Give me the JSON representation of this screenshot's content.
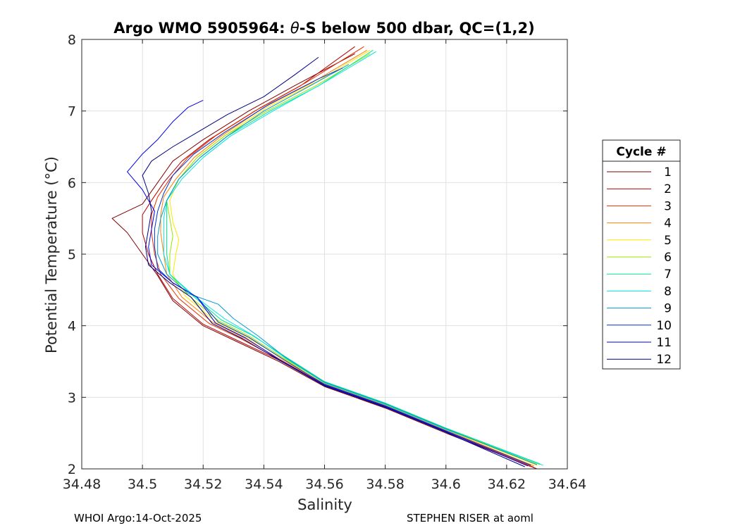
{
  "chart_data": {
    "type": "line",
    "title_prefix": "Argo WMO 5905964: ",
    "title_theta": "θ",
    "title_suffix": "-S below 500 dbar,  QC=(1,2)",
    "xlabel": "Salinity",
    "ylabel": "Potential Temperature (°C)",
    "xlim": [
      34.48,
      34.64
    ],
    "ylim": [
      2,
      8
    ],
    "xticks": [
      34.48,
      34.5,
      34.52,
      34.54,
      34.56,
      34.58,
      34.6,
      34.62,
      34.64
    ],
    "xtick_labels": [
      "34.48",
      "34.5",
      "34.52",
      "34.54",
      "34.56",
      "34.58",
      "34.6",
      "34.62",
      "34.64"
    ],
    "yticks": [
      2,
      3,
      4,
      5,
      6,
      7,
      8
    ],
    "ytick_labels": [
      "2",
      "3",
      "4",
      "5",
      "6",
      "7",
      "8"
    ],
    "grid": true,
    "legend": {
      "title": "Cycle #",
      "placement": "right"
    },
    "series": [
      {
        "name": "1",
        "color": "#800000",
        "points": [
          [
            34.63,
            2.0
          ],
          [
            34.6,
            2.5
          ],
          [
            34.58,
            2.85
          ],
          [
            34.56,
            3.15
          ],
          [
            34.545,
            3.5
          ],
          [
            34.53,
            3.8
          ],
          [
            34.52,
            4.0
          ],
          [
            34.51,
            4.35
          ],
          [
            34.505,
            4.7
          ],
          [
            34.5,
            5.0
          ],
          [
            34.495,
            5.3
          ],
          [
            34.49,
            5.5
          ],
          [
            34.5,
            5.7
          ],
          [
            34.505,
            6.0
          ],
          [
            34.51,
            6.3
          ],
          [
            34.52,
            6.6
          ],
          [
            34.535,
            7.0
          ],
          [
            34.55,
            7.35
          ],
          [
            34.57,
            7.8
          ]
        ]
      },
      {
        "name": "2",
        "color": "#b30000",
        "points": [
          [
            34.629,
            2.02
          ],
          [
            34.6,
            2.52
          ],
          [
            34.58,
            2.87
          ],
          [
            34.56,
            3.17
          ],
          [
            34.545,
            3.52
          ],
          [
            34.53,
            3.82
          ],
          [
            34.52,
            4.02
          ],
          [
            34.51,
            4.38
          ],
          [
            34.505,
            4.72
          ],
          [
            34.502,
            5.0
          ],
          [
            34.5,
            5.3
          ],
          [
            34.5,
            5.55
          ],
          [
            34.503,
            5.75
          ],
          [
            34.507,
            6.0
          ],
          [
            34.513,
            6.3
          ],
          [
            34.522,
            6.6
          ],
          [
            34.537,
            7.0
          ],
          [
            34.552,
            7.35
          ],
          [
            34.57,
            7.9
          ]
        ]
      },
      {
        "name": "3",
        "color": "#e62e00",
        "points": [
          [
            34.628,
            2.03
          ],
          [
            34.6,
            2.53
          ],
          [
            34.58,
            2.88
          ],
          [
            34.56,
            3.18
          ],
          [
            34.545,
            3.53
          ],
          [
            34.532,
            3.83
          ],
          [
            34.522,
            4.03
          ],
          [
            34.512,
            4.38
          ],
          [
            34.506,
            4.72
          ],
          [
            34.504,
            5.0
          ],
          [
            34.503,
            5.3
          ],
          [
            34.503,
            5.55
          ],
          [
            34.505,
            5.8
          ],
          [
            34.509,
            6.05
          ],
          [
            34.515,
            6.35
          ],
          [
            34.524,
            6.65
          ],
          [
            34.539,
            7.05
          ],
          [
            34.554,
            7.4
          ],
          [
            34.573,
            7.9
          ]
        ]
      },
      {
        "name": "4",
        "color": "#ff8000",
        "points": [
          [
            34.629,
            2.04
          ],
          [
            34.6,
            2.54
          ],
          [
            34.58,
            2.89
          ],
          [
            34.56,
            3.19
          ],
          [
            34.545,
            3.54
          ],
          [
            34.533,
            3.84
          ],
          [
            34.523,
            4.05
          ],
          [
            34.513,
            4.4
          ],
          [
            34.508,
            4.72
          ],
          [
            34.507,
            5.0
          ],
          [
            34.506,
            5.3
          ],
          [
            34.506,
            5.55
          ],
          [
            34.507,
            5.8
          ],
          [
            34.511,
            6.05
          ],
          [
            34.517,
            6.35
          ],
          [
            34.526,
            6.65
          ],
          [
            34.54,
            7.05
          ],
          [
            34.556,
            7.4
          ],
          [
            34.574,
            7.85
          ]
        ]
      },
      {
        "name": "5",
        "color": "#ffe600",
        "points": [
          [
            34.63,
            2.05
          ],
          [
            34.6,
            2.55
          ],
          [
            34.58,
            2.9
          ],
          [
            34.56,
            3.2
          ],
          [
            34.546,
            3.55
          ],
          [
            34.534,
            3.85
          ],
          [
            34.524,
            4.06
          ],
          [
            34.514,
            4.42
          ],
          [
            34.51,
            4.72
          ],
          [
            34.511,
            5.0
          ],
          [
            34.512,
            5.2
          ],
          [
            34.51,
            5.45
          ],
          [
            34.509,
            5.75
          ],
          [
            34.512,
            6.05
          ],
          [
            34.518,
            6.35
          ],
          [
            34.527,
            6.65
          ],
          [
            34.541,
            7.05
          ],
          [
            34.557,
            7.4
          ],
          [
            34.575,
            7.85
          ]
        ]
      },
      {
        "name": "6",
        "color": "#99e600",
        "points": [
          [
            34.631,
            2.06
          ],
          [
            34.6,
            2.56
          ],
          [
            34.58,
            2.91
          ],
          [
            34.56,
            3.21
          ],
          [
            34.546,
            3.56
          ],
          [
            34.535,
            3.86
          ],
          [
            34.525,
            4.07
          ],
          [
            34.515,
            4.43
          ],
          [
            34.509,
            4.72
          ],
          [
            34.509,
            5.0
          ],
          [
            34.51,
            5.25
          ],
          [
            34.509,
            5.5
          ],
          [
            34.508,
            5.75
          ],
          [
            34.512,
            6.05
          ],
          [
            34.518,
            6.35
          ],
          [
            34.527,
            6.65
          ],
          [
            34.541,
            7.0
          ],
          [
            34.557,
            7.35
          ],
          [
            34.575,
            7.8
          ]
        ]
      },
      {
        "name": "7",
        "color": "#00e68a",
        "points": [
          [
            34.631,
            2.07
          ],
          [
            34.6,
            2.57
          ],
          [
            34.58,
            2.92
          ],
          [
            34.56,
            3.22
          ],
          [
            34.547,
            3.57
          ],
          [
            34.536,
            3.87
          ],
          [
            34.526,
            4.08
          ],
          [
            34.516,
            4.44
          ],
          [
            34.509,
            4.72
          ],
          [
            34.508,
            5.0
          ],
          [
            34.508,
            5.25
          ],
          [
            34.508,
            5.5
          ],
          [
            34.508,
            5.75
          ],
          [
            34.512,
            6.05
          ],
          [
            34.519,
            6.35
          ],
          [
            34.528,
            6.65
          ],
          [
            34.542,
            7.0
          ],
          [
            34.558,
            7.35
          ],
          [
            34.576,
            7.85
          ]
        ]
      },
      {
        "name": "8",
        "color": "#00e6e6",
        "points": [
          [
            34.632,
            2.05
          ],
          [
            34.6,
            2.55
          ],
          [
            34.58,
            2.9
          ],
          [
            34.56,
            3.2
          ],
          [
            34.547,
            3.55
          ],
          [
            34.537,
            3.85
          ],
          [
            34.527,
            4.1
          ],
          [
            34.517,
            4.42
          ],
          [
            34.509,
            4.72
          ],
          [
            34.507,
            5.0
          ],
          [
            34.507,
            5.25
          ],
          [
            34.507,
            5.5
          ],
          [
            34.508,
            5.75
          ],
          [
            34.513,
            6.05
          ],
          [
            34.52,
            6.35
          ],
          [
            34.529,
            6.65
          ],
          [
            34.543,
            7.0
          ],
          [
            34.56,
            7.4
          ],
          [
            34.577,
            7.83
          ]
        ]
      },
      {
        "name": "9",
        "color": "#0099cc",
        "points": [
          [
            34.63,
            2.06
          ],
          [
            34.6,
            2.56
          ],
          [
            34.58,
            2.91
          ],
          [
            34.56,
            3.21
          ],
          [
            34.547,
            3.56
          ],
          [
            34.538,
            3.86
          ],
          [
            34.53,
            4.1
          ],
          [
            34.525,
            4.3
          ],
          [
            34.515,
            4.45
          ],
          [
            34.508,
            4.72
          ],
          [
            34.505,
            5.0
          ],
          [
            34.505,
            5.25
          ],
          [
            34.506,
            5.5
          ],
          [
            34.508,
            5.75
          ],
          [
            34.512,
            6.05
          ],
          [
            34.519,
            6.35
          ],
          [
            34.528,
            6.65
          ],
          [
            34.54,
            7.0
          ],
          [
            34.553,
            7.3
          ],
          [
            34.568,
            7.65
          ]
        ]
      },
      {
        "name": "10",
        "color": "#0033cc",
        "points": [
          [
            34.628,
            2.05
          ],
          [
            34.6,
            2.53
          ],
          [
            34.58,
            2.88
          ],
          [
            34.56,
            3.18
          ],
          [
            34.546,
            3.54
          ],
          [
            34.535,
            3.84
          ],
          [
            34.525,
            4.05
          ],
          [
            34.518,
            4.4
          ],
          [
            34.51,
            4.6
          ],
          [
            34.505,
            4.8
          ],
          [
            34.504,
            5.1
          ],
          [
            34.504,
            5.35
          ],
          [
            34.505,
            5.6
          ],
          [
            34.507,
            5.85
          ],
          [
            34.51,
            6.1
          ],
          [
            34.517,
            6.4
          ],
          [
            34.527,
            6.7
          ],
          [
            34.542,
            7.1
          ],
          [
            34.558,
            7.45
          ],
          [
            34.566,
            7.6
          ]
        ]
      },
      {
        "name": "11",
        "color": "#0000e6",
        "points": [
          [
            34.627,
            2.04
          ],
          [
            34.6,
            2.52
          ],
          [
            34.58,
            2.87
          ],
          [
            34.56,
            3.17
          ],
          [
            34.545,
            3.53
          ],
          [
            34.534,
            3.83
          ],
          [
            34.524,
            4.04
          ],
          [
            34.518,
            4.4
          ],
          [
            34.51,
            4.6
          ],
          [
            34.503,
            4.85
          ],
          [
            34.502,
            5.1
          ],
          [
            34.503,
            5.35
          ],
          [
            34.504,
            5.6
          ],
          [
            34.5,
            5.9
          ],
          [
            34.495,
            6.15
          ],
          [
            34.5,
            6.4
          ],
          [
            34.505,
            6.6
          ],
          [
            34.51,
            6.85
          ],
          [
            34.515,
            7.05
          ],
          [
            34.52,
            7.15
          ]
        ]
      },
      {
        "name": "12",
        "color": "#000080",
        "points": [
          [
            34.626,
            2.03
          ],
          [
            34.6,
            2.51
          ],
          [
            34.58,
            2.86
          ],
          [
            34.56,
            3.16
          ],
          [
            34.545,
            3.52
          ],
          [
            34.533,
            3.82
          ],
          [
            34.523,
            4.03
          ],
          [
            34.516,
            4.4
          ],
          [
            34.509,
            4.6
          ],
          [
            34.502,
            4.85
          ],
          [
            34.501,
            5.1
          ],
          [
            34.502,
            5.35
          ],
          [
            34.503,
            5.6
          ],
          [
            34.502,
            5.85
          ],
          [
            34.5,
            6.1
          ],
          [
            34.503,
            6.3
          ],
          [
            34.51,
            6.5
          ],
          [
            34.518,
            6.7
          ],
          [
            34.528,
            6.95
          ],
          [
            34.54,
            7.2
          ],
          [
            34.55,
            7.5
          ],
          [
            34.558,
            7.75
          ]
        ]
      }
    ]
  },
  "footer": {
    "left": "WHOI Argo:14-Oct-2025",
    "right": "STEPHEN RISER at aoml"
  }
}
